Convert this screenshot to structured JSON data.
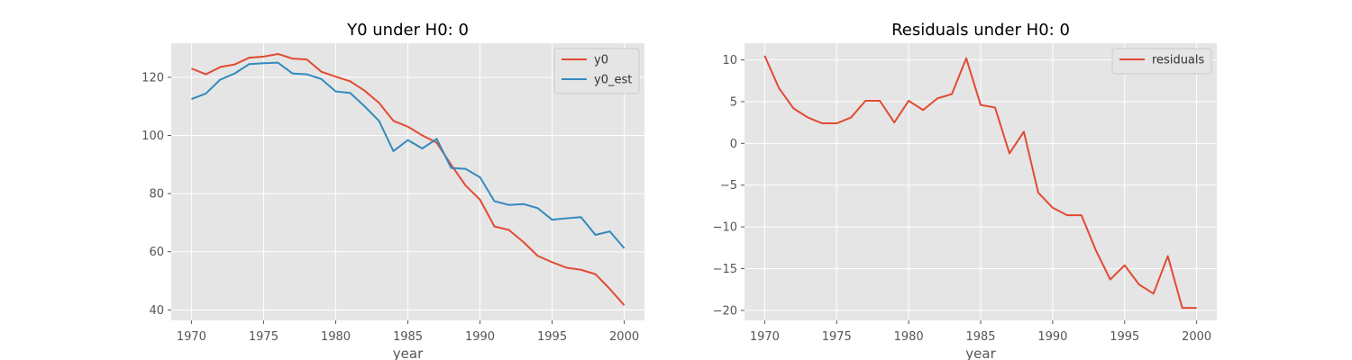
{
  "figure": {
    "background": "#ffffff",
    "axes_facecolor": "#e5e5e5",
    "grid_color": "#ffffff",
    "style": "ggplot"
  },
  "chart_data": [
    {
      "id": "left",
      "type": "line",
      "title": "Y0 under H0: 0",
      "xlabel": "year",
      "ylabel": "",
      "grid": true,
      "legend_position": "top-right",
      "xlim": [
        1968.6,
        2001.4
      ],
      "ylim": [
        36.4,
        131.7
      ],
      "xticks": [
        1970,
        1975,
        1980,
        1985,
        1990,
        1995,
        2000
      ],
      "yticks": [
        40,
        60,
        80,
        100,
        120
      ],
      "x": [
        1970,
        1971,
        1972,
        1973,
        1974,
        1975,
        1976,
        1977,
        1978,
        1979,
        1980,
        1981,
        1982,
        1983,
        1984,
        1985,
        1986,
        1987,
        1988,
        1989,
        1990,
        1991,
        1992,
        1993,
        1994,
        1995,
        1996,
        1997,
        1998,
        1999,
        2000
      ],
      "series": [
        {
          "name": "y0",
          "color": "#E24A33",
          "values": [
            123.0,
            121.0,
            123.5,
            124.4,
            126.7,
            127.1,
            128.0,
            126.4,
            126.1,
            121.9,
            120.2,
            118.6,
            115.4,
            111.2,
            105.0,
            103.0,
            100.0,
            97.5,
            89.9,
            82.8,
            77.9,
            68.7,
            67.5,
            63.4,
            58.6,
            56.4,
            54.5,
            53.8,
            52.3,
            47.2,
            41.6
          ]
        },
        {
          "name": "y0_est",
          "color": "#348ABD",
          "values": [
            112.5,
            114.4,
            119.2,
            121.3,
            124.5,
            124.8,
            125.0,
            121.3,
            121.0,
            119.4,
            115.1,
            114.6,
            110.0,
            105.0,
            94.6,
            98.4,
            95.5,
            98.8,
            88.8,
            88.5,
            85.6,
            77.4,
            76.1,
            76.4,
            75.0,
            71.0,
            71.5,
            71.9,
            65.8,
            67.0,
            61.2
          ]
        }
      ]
    },
    {
      "id": "right",
      "type": "line",
      "title": "Residuals under H0: 0",
      "xlabel": "year",
      "ylabel": "",
      "grid": true,
      "legend_position": "top-right",
      "xlim": [
        1968.6,
        2001.4
      ],
      "ylim": [
        -21.2,
        12.0
      ],
      "xticks": [
        1970,
        1975,
        1980,
        1985,
        1990,
        1995,
        2000
      ],
      "yticks": [
        -20,
        -15,
        -10,
        -5,
        0,
        5,
        10
      ],
      "x": [
        1970,
        1971,
        1972,
        1973,
        1974,
        1975,
        1976,
        1977,
        1978,
        1979,
        1980,
        1981,
        1982,
        1983,
        1984,
        1985,
        1986,
        1987,
        1988,
        1989,
        1990,
        1991,
        1992,
        1993,
        1994,
        1995,
        1996,
        1997,
        1998,
        1999,
        2000
      ],
      "series": [
        {
          "name": "residuals",
          "color": "#E24A33",
          "values": [
            10.5,
            6.6,
            4.2,
            3.1,
            2.4,
            2.4,
            3.1,
            5.1,
            5.1,
            2.5,
            5.1,
            4.0,
            5.4,
            5.9,
            10.2,
            4.6,
            4.3,
            -1.2,
            1.4,
            -5.9,
            -7.7,
            -8.6,
            -8.6,
            -12.8,
            -16.3,
            -14.6,
            -16.9,
            -18.0,
            -13.5,
            -19.7,
            -19.7
          ]
        }
      ]
    }
  ]
}
